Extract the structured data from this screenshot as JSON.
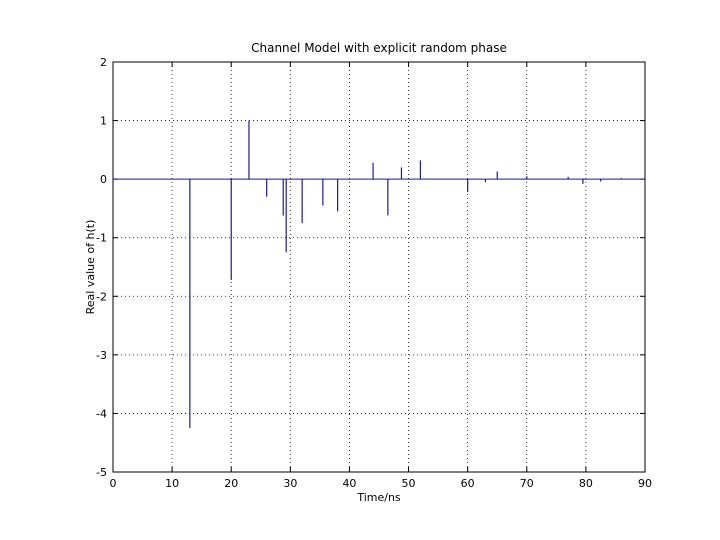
{
  "chart_data": {
    "type": "stem",
    "title": "Channel Model with explicit random phase",
    "xlabel": "Time/ns",
    "ylabel": "Real value of h(t)",
    "xlim": [
      0,
      90
    ],
    "ylim": [
      -5,
      2
    ],
    "xticks": [
      0,
      10,
      20,
      30,
      40,
      50,
      60,
      70,
      80,
      90
    ],
    "yticks": [
      -5,
      -4,
      -3,
      -2,
      -1,
      0,
      1,
      2
    ],
    "grid": true,
    "color": "#1a1aa0",
    "series": [
      {
        "x": [
          13,
          20,
          23,
          26,
          28.8,
          29.3,
          32,
          35.5,
          38,
          44,
          46.5,
          48.8,
          52,
          60,
          63,
          65,
          70,
          77,
          79.5,
          82.5,
          86
        ],
        "y": [
          -4.25,
          -1.72,
          1.0,
          -0.3,
          -0.62,
          -1.25,
          -0.75,
          -0.45,
          -0.55,
          0.28,
          -0.62,
          0.2,
          0.32,
          -0.22,
          -0.05,
          0.13,
          0.05,
          0.04,
          -0.08,
          -0.04,
          0.02
        ]
      }
    ]
  }
}
